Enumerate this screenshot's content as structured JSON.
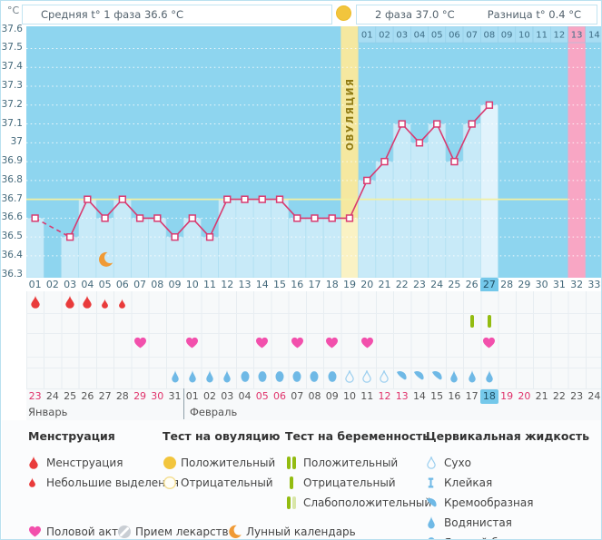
{
  "colors": {
    "chart_bg": "#8ED5EF",
    "bar": "#C8EAF8",
    "bar_today": "#E1F3FC",
    "ovulation_band": "#F5E8A0",
    "ovulation_band_bar": "#FAF2C4",
    "pink_band": "#F8A6C4",
    "phase2_strip": "#A8DDF3",
    "temp_line": "#D83A70",
    "coverline": "#F2EFA2",
    "red_drop": "#E93B3B",
    "heart_pink": "#F250AC",
    "green_bar": "#93BC11",
    "green_bar_pale": "#D9E6A8",
    "gold": "#F2C53D",
    "blue_icon": "#6FB9E6",
    "moon_orange": "#F09A35",
    "pill_gray": "#C9CED4",
    "date_red": "#E0336B",
    "today_bg": "#74C8EA",
    "ovulation_label_text": "#8F7A12"
  },
  "header": {
    "unit_label": "°C",
    "phase1_label": "Средняя t° 1 фаза 36.6 °C",
    "phase2_label": "2 фаза 37.0 °C",
    "diff_label": "Разница t° 0.4 °C"
  },
  "chart_data": {
    "type": "line",
    "title": "График базальной температуры",
    "ylabel": "°C",
    "ylim": [
      36.3,
      37.6
    ],
    "ytick_step": 0.1,
    "yticks": [
      "37.6",
      "37.5",
      "37.4",
      "37.3",
      "37.2",
      "37.1",
      "37",
      "36.9",
      "36.8",
      "36.7",
      "36.6",
      "36.5",
      "36.4",
      "36.3"
    ],
    "grid": "dotted",
    "x_days": [
      1,
      2,
      3,
      4,
      5,
      6,
      7,
      8,
      9,
      10,
      11,
      12,
      13,
      14,
      15,
      16,
      17,
      18,
      19,
      20,
      21,
      22,
      23,
      24,
      25,
      26,
      27,
      28,
      29,
      30,
      31,
      32,
      33
    ],
    "day_labels": [
      "01",
      "02",
      "03",
      "04",
      "05",
      "06",
      "07",
      "08",
      "09",
      "10",
      "11",
      "12",
      "13",
      "14",
      "15",
      "16",
      "17",
      "18",
      "19",
      "20",
      "21",
      "22",
      "23",
      "24",
      "25",
      "26",
      "27",
      "28",
      "29",
      "30",
      "31",
      "32",
      "33"
    ],
    "temps": [
      36.6,
      null,
      36.5,
      36.7,
      36.6,
      36.7,
      36.6,
      36.6,
      36.5,
      36.6,
      36.5,
      36.7,
      36.7,
      36.7,
      36.7,
      36.6,
      36.6,
      36.6,
      36.6,
      36.8,
      36.9,
      37.1,
      37.0,
      37.1,
      36.9,
      37.1,
      37.2,
      null,
      null,
      null,
      null,
      null,
      null
    ],
    "missing_data_days": [
      2
    ],
    "coverline_temp": 36.7,
    "ovulation_day": 19,
    "ovulation_label": "ОВУЛЯЦИЯ",
    "phase2_start_day": 20,
    "phase2_day_labels": [
      "01",
      "02",
      "03",
      "04",
      "05",
      "06",
      "07",
      "08",
      "09",
      "10",
      "11",
      "12",
      "13",
      "14"
    ],
    "highlight_pink_day": 32,
    "today_cycle_day": 27,
    "legend_position": "bottom"
  },
  "events": {
    "menstruation_days": [
      1,
      3,
      4
    ],
    "spotting_days": [
      5,
      6
    ],
    "pregnancy_test_negative_days": [
      26,
      27
    ],
    "intercourse_days": [
      7,
      10,
      14,
      16,
      18,
      20,
      27
    ],
    "lunar_calendar_day": 5,
    "cervical_fluid": [
      {
        "day": 9,
        "type": "watery"
      },
      {
        "day": 10,
        "type": "watery"
      },
      {
        "day": 11,
        "type": "watery"
      },
      {
        "day": 12,
        "type": "watery"
      },
      {
        "day": 13,
        "type": "eggwhite"
      },
      {
        "day": 14,
        "type": "eggwhite"
      },
      {
        "day": 15,
        "type": "eggwhite"
      },
      {
        "day": 16,
        "type": "eggwhite"
      },
      {
        "day": 17,
        "type": "eggwhite"
      },
      {
        "day": 18,
        "type": "eggwhite"
      },
      {
        "day": 19,
        "type": "dry"
      },
      {
        "day": 20,
        "type": "dry"
      },
      {
        "day": 21,
        "type": "dry"
      },
      {
        "day": 22,
        "type": "creamy"
      },
      {
        "day": 23,
        "type": "creamy"
      },
      {
        "day": 24,
        "type": "creamy"
      },
      {
        "day": 25,
        "type": "watery"
      },
      {
        "day": 26,
        "type": "watery"
      },
      {
        "day": 27,
        "type": "watery"
      }
    ]
  },
  "calendar": {
    "months": [
      "Январь",
      "Февраль"
    ],
    "month_boundary_index": 9,
    "today_index": 26,
    "dates": [
      {
        "label": "23",
        "red": true
      },
      {
        "label": "24"
      },
      {
        "label": "25"
      },
      {
        "label": "26"
      },
      {
        "label": "27"
      },
      {
        "label": "28"
      },
      {
        "label": "29",
        "red": true
      },
      {
        "label": "30",
        "red": true
      },
      {
        "label": "31"
      },
      {
        "label": "01"
      },
      {
        "label": "02"
      },
      {
        "label": "03"
      },
      {
        "label": "04"
      },
      {
        "label": "05",
        "red": true
      },
      {
        "label": "06",
        "red": true
      },
      {
        "label": "07"
      },
      {
        "label": "08"
      },
      {
        "label": "09"
      },
      {
        "label": "10"
      },
      {
        "label": "11"
      },
      {
        "label": "12",
        "red": true
      },
      {
        "label": "13",
        "red": true
      },
      {
        "label": "14"
      },
      {
        "label": "15"
      },
      {
        "label": "16"
      },
      {
        "label": "17"
      },
      {
        "label": "18"
      },
      {
        "label": "19",
        "red": true
      },
      {
        "label": "20",
        "red": true
      },
      {
        "label": "21"
      },
      {
        "label": "22"
      },
      {
        "label": "23"
      },
      {
        "label": "24"
      }
    ]
  },
  "legend": {
    "sections": [
      {
        "title": "Менструация",
        "items": [
          {
            "icon": "drop-big",
            "label": "Менструация"
          },
          {
            "icon": "drop-small",
            "label": "Небольшие выделения"
          }
        ]
      },
      {
        "title": "Тест на овуляцию",
        "items": [
          {
            "icon": "ovu-pos",
            "label": "Положительный"
          },
          {
            "icon": "ovu-neg",
            "label": "Отрицательный"
          }
        ]
      },
      {
        "title": "Тест на беременность",
        "items": [
          {
            "icon": "preg-pos",
            "label": "Положительный"
          },
          {
            "icon": "preg-neg",
            "label": "Отрицательный"
          },
          {
            "icon": "preg-weak",
            "label": "Слабоположительный"
          }
        ]
      },
      {
        "title": "Цервикальная жидкость",
        "items": [
          {
            "icon": "cf-dry",
            "label": "Сухо"
          },
          {
            "icon": "cf-sticky",
            "label": "Клейкая"
          },
          {
            "icon": "cf-creamy",
            "label": "Кремообразная"
          },
          {
            "icon": "cf-watery",
            "label": "Водянистая"
          },
          {
            "icon": "cf-eggwhite",
            "label": "Яичный белок"
          }
        ]
      }
    ],
    "bottom_items": [
      {
        "icon": "heart",
        "label": "Половой акт"
      },
      {
        "icon": "pill",
        "label": "Прием лекарств"
      },
      {
        "icon": "moon",
        "label": "Лунный календарь"
      }
    ]
  }
}
